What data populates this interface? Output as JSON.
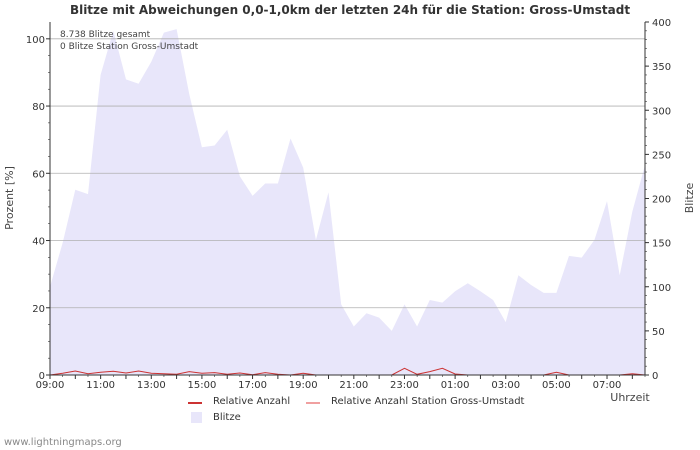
{
  "chart_data": {
    "type": "area",
    "title": "Blitze mit Abweichungen 0,0-1,0km der letzten 24h für die Station: Gross-Umstadt",
    "ylabel_left": "Prozent   [%]",
    "ylabel_right": "Blitze",
    "xlabel": "Uhrzeit",
    "ylim_left": [
      0,
      105
    ],
    "ylim_right": [
      0,
      400
    ],
    "y_ticks_left": [
      "0",
      "20",
      "40",
      "60",
      "80",
      "100"
    ],
    "y_ticks_right": [
      "0",
      "50",
      "100",
      "150",
      "200",
      "250",
      "300",
      "350",
      "400"
    ],
    "x_tick_labels": [
      "09:00",
      "11:00",
      "13:00",
      "15:00",
      "17:00",
      "19:00",
      "21:00",
      "23:00",
      "01:00",
      "03:00",
      "05:00",
      "07:00"
    ],
    "x_hours": [
      0,
      0.5,
      1,
      1.5,
      2,
      2.5,
      3,
      3.5,
      4,
      4.5,
      5,
      5.5,
      6,
      6.5,
      7,
      7.5,
      8,
      8.5,
      9,
      9.5,
      10,
      10.5,
      11,
      11.5,
      12,
      12.5,
      13,
      13.5,
      14,
      14.5,
      15,
      15.5,
      16,
      16.5,
      17,
      17.5,
      18,
      18.5,
      19,
      19.5,
      20,
      20.5,
      21,
      21.5,
      22,
      22.5,
      23,
      23.5
    ],
    "series": [
      {
        "name": "Blitze",
        "axis": "right",
        "color": "#e8e6fa",
        "values": [
          100,
          150,
          210,
          205,
          340,
          390,
          335,
          330,
          355,
          388,
          392,
          318,
          258,
          260,
          278,
          225,
          203,
          217,
          217,
          268,
          235,
          153,
          207,
          80,
          55,
          70,
          65,
          50,
          80,
          55,
          85,
          82,
          95,
          104,
          95,
          85,
          60,
          113,
          102,
          93,
          93,
          135,
          133,
          153,
          197,
          113,
          185,
          238
        ]
      },
      {
        "name": "Relative Anzahl",
        "axis": "left",
        "color": "#cc3333",
        "values": [
          0,
          0.5,
          1.2,
          0.4,
          0.8,
          1.1,
          0.6,
          1.2,
          0.5,
          0.4,
          0.2,
          1.0,
          0.5,
          0.7,
          0.2,
          0.6,
          0.1,
          0.7,
          0.2,
          0,
          0.5,
          0,
          0,
          0,
          0,
          0,
          0,
          0,
          2.0,
          0.2,
          1.0,
          2.0,
          0.3,
          0,
          0,
          0,
          0,
          0,
          0,
          0,
          0.8,
          0,
          0,
          0,
          0,
          0,
          0.4,
          0
        ]
      },
      {
        "name": "Relative Anzahl Station Gross-Umstadt",
        "axis": "left",
        "color": "#f0a0a0",
        "values": [
          0,
          0,
          0,
          0,
          0,
          0,
          0,
          0,
          0,
          0,
          0,
          0,
          0,
          0,
          0,
          0,
          0,
          0,
          0,
          0,
          0,
          0,
          0,
          0,
          0,
          0,
          0,
          0,
          0,
          0,
          0,
          0,
          0,
          0,
          0,
          0,
          0,
          0,
          0,
          0,
          0,
          0,
          0,
          0,
          0,
          0,
          0,
          0
        ]
      }
    ],
    "legend": [
      "Relative Anzahl",
      "Relative Anzahl Station Gross-Umstadt",
      "Blitze"
    ],
    "annotations": [
      "8.738 Blitze gesamt",
      "0 Blitze Station Gross-Umstadt"
    ]
  },
  "footer": {
    "watermark": "www.lightningmaps.org"
  }
}
